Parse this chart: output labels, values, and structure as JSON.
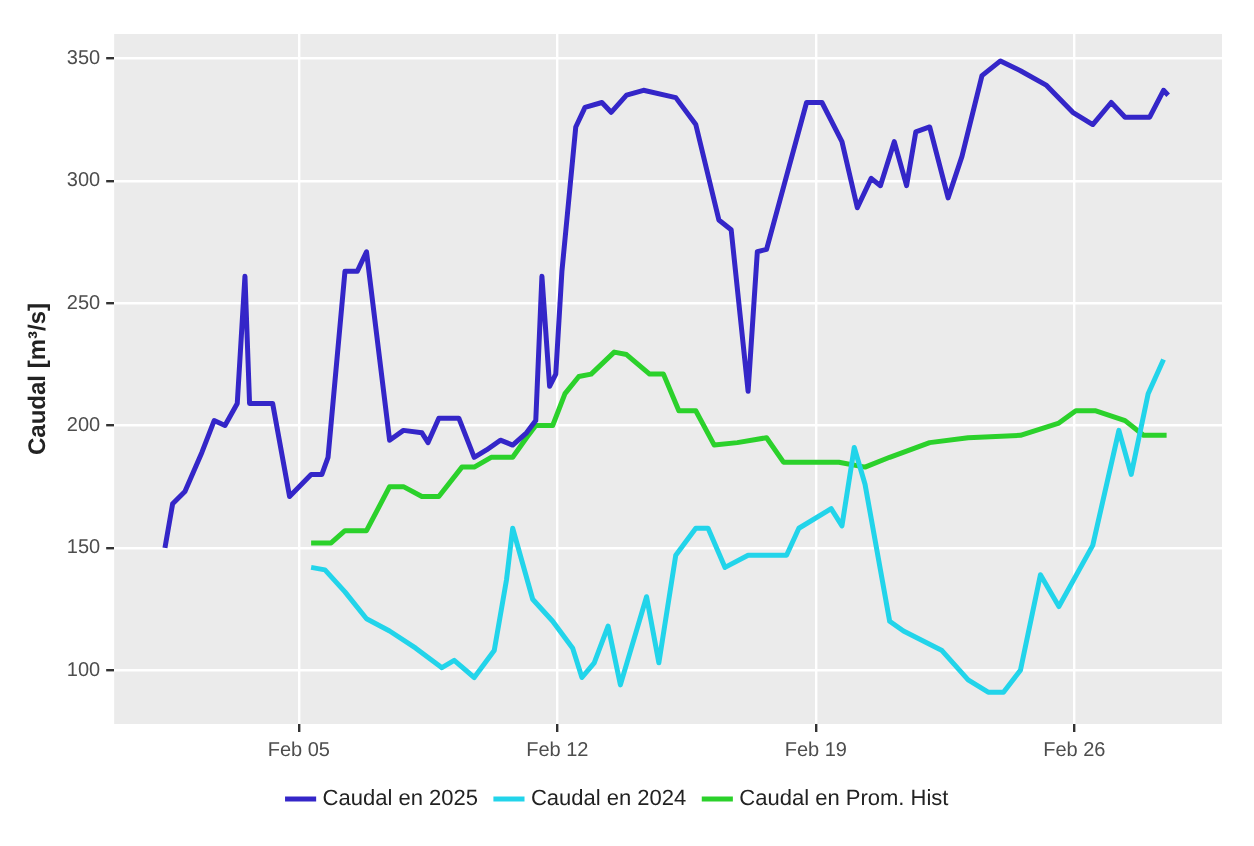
{
  "chart_data": {
    "type": "line",
    "ylabel": "Caudal [m³/s]",
    "xlim": [
      "2025-01-31",
      "2025-03-02"
    ],
    "xticks": [
      {
        "value": "2025-02-05",
        "label": "Feb 05"
      },
      {
        "value": "2025-02-12",
        "label": "Feb 12"
      },
      {
        "value": "2025-02-19",
        "label": "Feb 19"
      },
      {
        "value": "2025-02-26",
        "label": "Feb 26"
      }
    ],
    "ylim": [
      78,
      360
    ],
    "yticks": [
      100,
      150,
      200,
      250,
      300,
      350
    ],
    "grid": true,
    "legend": "bottom",
    "marker": "none",
    "line_style": "solid",
    "series": [
      {
        "name": "Caudal en 2025",
        "color": "#3426c8",
        "x": [
          "2025-02-01T09:00",
          "2025-02-01T14:00",
          "2025-02-01T22:00",
          "2025-02-02T09:00",
          "2025-02-02T17:00",
          "2025-02-03T00:00",
          "2025-02-03T08:00",
          "2025-02-03T13:00",
          "2025-02-03T16:00",
          "2025-02-04T07:00",
          "2025-02-04T18:00",
          "2025-02-05T08:00",
          "2025-02-05T15:00",
          "2025-02-05T19:00",
          "2025-02-06T06:00",
          "2025-02-06T14:00",
          "2025-02-06T20:00",
          "2025-02-07T11:00",
          "2025-02-07T20:00",
          "2025-02-08T08:00",
          "2025-02-08T12:00",
          "2025-02-08T19:00",
          "2025-02-09T08:00",
          "2025-02-09T18:00",
          "2025-02-10T02:00",
          "2025-02-10T11:00",
          "2025-02-10T19:00",
          "2025-02-11T04:00",
          "2025-02-11T10:00",
          "2025-02-11T14:00",
          "2025-02-11T19:00",
          "2025-02-11T23:00",
          "2025-02-12T03:00",
          "2025-02-12T12:00",
          "2025-02-12T18:00",
          "2025-02-13T05:00",
          "2025-02-13T11:00",
          "2025-02-13T21:00",
          "2025-02-14T08:00",
          "2025-02-15T05:00",
          "2025-02-15T18:00",
          "2025-02-16T09:00",
          "2025-02-16T17:00",
          "2025-02-17T04:00",
          "2025-02-17T10:00",
          "2025-02-17T16:00",
          "2025-02-18T05:00",
          "2025-02-18T18:00",
          "2025-02-19T04:00",
          "2025-02-19T17:00",
          "2025-02-20T03:00",
          "2025-02-20T12:00",
          "2025-02-20T18:00",
          "2025-02-21T03:00",
          "2025-02-21T11:00",
          "2025-02-21T17:00",
          "2025-02-22T02:00",
          "2025-02-22T14:00",
          "2025-02-22T23:00",
          "2025-02-23T12:00",
          "2025-02-24T00:00",
          "2025-02-24T13:00",
          "2025-02-25T06:00",
          "2025-02-25T23:00",
          "2025-02-26T12:00",
          "2025-02-27T00:00",
          "2025-02-27T09:00",
          "2025-02-28T01:00",
          "2025-02-28T10:00",
          "2025-02-28T13:00"
        ],
        "values": [
          150,
          168,
          173,
          189,
          202,
          200,
          209,
          261,
          209,
          209,
          171,
          180,
          180,
          187,
          263,
          263,
          271,
          194,
          198,
          197,
          193,
          203,
          203,
          187,
          190,
          194,
          192,
          197,
          202,
          261,
          216,
          221,
          263,
          322,
          330,
          332,
          328,
          335,
          337,
          334,
          323,
          284,
          280,
          214,
          271,
          272,
          302,
          332,
          332,
          316,
          289,
          301,
          298,
          316,
          298,
          320,
          322,
          293,
          310,
          343,
          349,
          345,
          339,
          328,
          323,
          332,
          326,
          326,
          337,
          335
        ]
      },
      {
        "name": "Caudal en 2024",
        "color": "#22d4ea",
        "x": [
          "2025-02-05T08:00",
          "2025-02-05T17:00",
          "2025-02-06T06:00",
          "2025-02-06T20:00",
          "2025-02-07T11:00",
          "2025-02-08T04:00",
          "2025-02-08T21:00",
          "2025-02-09T05:00",
          "2025-02-09T18:00",
          "2025-02-10T07:00",
          "2025-02-10T15:00",
          "2025-02-10T19:00",
          "2025-02-11T08:00",
          "2025-02-11T21:00",
          "2025-02-12T10:00",
          "2025-02-12T16:00",
          "2025-02-13T00:00",
          "2025-02-13T09:00",
          "2025-02-13T17:00",
          "2025-02-14T10:00",
          "2025-02-14T18:00",
          "2025-02-15T05:00",
          "2025-02-15T18:00",
          "2025-02-16T02:00",
          "2025-02-16T13:00",
          "2025-02-17T04:00",
          "2025-02-18T05:00",
          "2025-02-18T13:00",
          "2025-02-19T10:00",
          "2025-02-19T17:00",
          "2025-02-20T01:00",
          "2025-02-20T08:00",
          "2025-02-21T00:00",
          "2025-02-21T09:00",
          "2025-02-22T10:00",
          "2025-02-23T03:00",
          "2025-02-23T16:00",
          "2025-02-24T02:00",
          "2025-02-24T13:00",
          "2025-02-25T02:00",
          "2025-02-25T14:00",
          "2025-02-26T12:00",
          "2025-02-27T05:00",
          "2025-02-27T13:00",
          "2025-02-28T00:00",
          "2025-02-28T10:00"
        ],
        "values": [
          142,
          141,
          132,
          121,
          116,
          109,
          101,
          104,
          97,
          108,
          137,
          158,
          129,
          120,
          109,
          97,
          103,
          118,
          94,
          130,
          103,
          147,
          158,
          158,
          142,
          147,
          147,
          158,
          166,
          159,
          191,
          176,
          120,
          116,
          108,
          96,
          91,
          91,
          100,
          139,
          126,
          151,
          198,
          180,
          213,
          227
        ]
      },
      {
        "name": "Caudal en Prom. Hist",
        "color": "#2bd12b",
        "x": [
          "2025-02-05T08:00",
          "2025-02-05T21:00",
          "2025-02-06T06:00",
          "2025-02-06T20:00",
          "2025-02-07T11:00",
          "2025-02-07T20:00",
          "2025-02-08T08:00",
          "2025-02-08T19:00",
          "2025-02-09T10:00",
          "2025-02-09T18:00",
          "2025-02-10T05:00",
          "2025-02-10T19:00",
          "2025-02-11T04:00",
          "2025-02-11T10:00",
          "2025-02-11T21:00",
          "2025-02-12T05:00",
          "2025-02-12T14:00",
          "2025-02-12T22:00",
          "2025-02-13T13:00",
          "2025-02-13T21:00",
          "2025-02-14T12:00",
          "2025-02-14T21:00",
          "2025-02-15T07:00",
          "2025-02-15T18:00",
          "2025-02-16T06:00",
          "2025-02-16T21:00",
          "2025-02-17T16:00",
          "2025-02-18T03:00",
          "2025-02-18T18:00",
          "2025-02-19T15:00",
          "2025-02-20T08:00",
          "2025-02-21T00:00",
          "2025-02-22T02:00",
          "2025-02-23T03:00",
          "2025-02-24T13:00",
          "2025-02-25T14:00",
          "2025-02-26T01:00",
          "2025-02-26T14:00",
          "2025-02-27T09:00",
          "2025-02-27T21:00",
          "2025-02-28T12:00"
        ],
        "values": [
          152,
          152,
          157,
          157,
          175,
          175,
          171,
          171,
          183,
          183,
          187,
          187,
          195,
          200,
          200,
          213,
          220,
          221,
          230,
          229,
          221,
          221,
          206,
          206,
          192,
          193,
          195,
          185,
          185,
          185,
          183,
          187,
          193,
          195,
          196,
          201,
          206,
          206,
          202,
          196,
          196
        ]
      }
    ]
  }
}
